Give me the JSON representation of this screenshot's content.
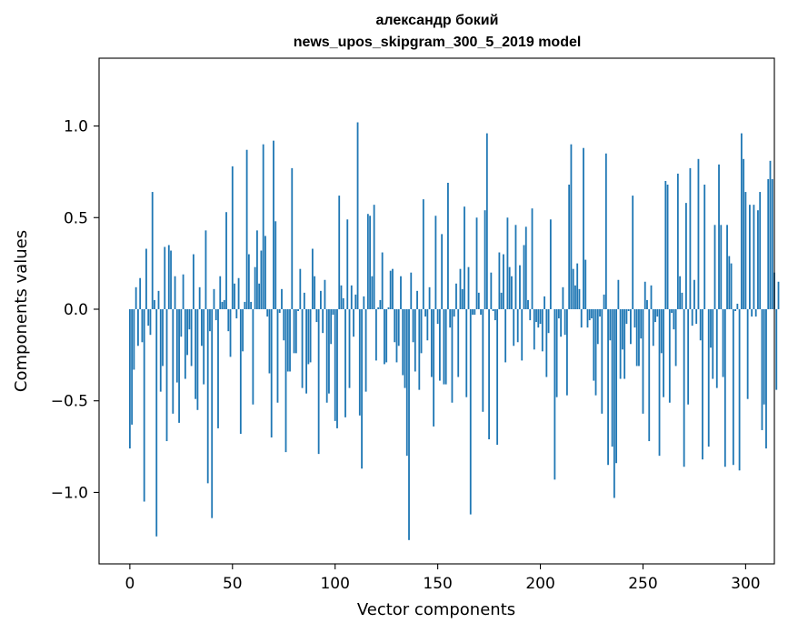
{
  "chart_data": {
    "type": "bar",
    "title_line1": "александр бокий",
    "title_line2": "news_upos_skipgram_300_5_2019 model",
    "xlabel": "Vector components",
    "ylabel": "Components values",
    "xlim": [
      -15,
      314
    ],
    "ylim": [
      -1.39,
      1.37
    ],
    "xticks": [
      0,
      50,
      100,
      150,
      200,
      250,
      300
    ],
    "xtick_labels": [
      "0",
      "50",
      "100",
      "150",
      "200",
      "250",
      "300"
    ],
    "yticks": [
      -1.0,
      -0.5,
      0.0,
      0.5,
      1.0
    ],
    "ytick_labels": [
      "−1.0",
      "−0.5",
      "0.0",
      "0.5",
      "1.0"
    ],
    "bar_color": "#1f77b4",
    "values": [
      -0.76,
      -0.63,
      -0.33,
      0.12,
      -0.2,
      0.17,
      -0.18,
      -1.05,
      0.33,
      -0.09,
      -0.14,
      0.64,
      0.05,
      -1.24,
      0.1,
      -0.45,
      -0.31,
      0.34,
      -0.72,
      0.35,
      0.32,
      -0.57,
      0.18,
      -0.4,
      -0.62,
      -0.15,
      0.19,
      -0.38,
      -0.25,
      -0.11,
      -0.31,
      0.3,
      -0.49,
      -0.55,
      0.12,
      -0.2,
      -0.41,
      0.43,
      -0.95,
      -0.12,
      -1.14,
      0.11,
      -0.06,
      -0.65,
      0.18,
      0.04,
      0.05,
      0.53,
      -0.12,
      -0.26,
      0.78,
      0.14,
      -0.05,
      0.17,
      -0.68,
      -0.23,
      0.04,
      0.87,
      0.3,
      0.04,
      -0.52,
      0.23,
      0.43,
      0.14,
      0.32,
      0.9,
      0.4,
      -0.04,
      -0.35,
      -0.7,
      0.92,
      0.48,
      -0.51,
      -0.02,
      0.11,
      -0.17,
      -0.78,
      -0.34,
      -0.34,
      0.77,
      -0.24,
      -0.24,
      -0.01,
      0.22,
      -0.43,
      0.09,
      -0.46,
      -0.3,
      -0.29,
      0.33,
      0.18,
      -0.07,
      -0.79,
      0.1,
      -0.13,
      0.16,
      -0.51,
      -0.46,
      -0.19,
      -0.03,
      -0.61,
      -0.65,
      0.62,
      0.13,
      0.06,
      -0.59,
      0.49,
      -0.43,
      0.13,
      -0.15,
      0.08,
      1.02,
      -0.58,
      -0.87,
      0.07,
      -0.45,
      0.52,
      0.51,
      0.18,
      0.57,
      -0.28,
      0.01,
      0.05,
      0.31,
      -0.3,
      -0.29,
      0.01,
      0.21,
      0.22,
      -0.18,
      -0.29,
      -0.2,
      0.18,
      -0.36,
      -0.43,
      -0.8,
      -1.26,
      0.2,
      -0.18,
      -0.34,
      0.1,
      -0.44,
      -0.24,
      0.6,
      -0.04,
      -0.17,
      0.12,
      -0.37,
      -0.64,
      0.51,
      -0.08,
      -0.39,
      0.41,
      -0.41,
      -0.41,
      0.69,
      -0.1,
      -0.51,
      -0.04,
      0.14,
      -0.37,
      0.22,
      0.11,
      0.56,
      -0.48,
      0.23,
      -1.12,
      -0.03,
      -0.03,
      0.5,
      0.09,
      -0.03,
      -0.56,
      0.54,
      0.96,
      -0.71,
      0.2,
      -0.01,
      -0.06,
      -0.74,
      0.31,
      0.09,
      0.3,
      -0.29,
      0.5,
      0.23,
      0.18,
      -0.2,
      0.46,
      -0.18,
      0.24,
      -0.28,
      0.35,
      0.45,
      0.05,
      -0.06,
      0.55,
      -0.22,
      -0.07,
      -0.1,
      -0.08,
      -0.23,
      0.07,
      -0.37,
      -0.13,
      0.49,
      0.0,
      -0.93,
      -0.48,
      -0.05,
      -0.15,
      0.12,
      -0.14,
      -0.47,
      0.68,
      0.9,
      0.22,
      0.13,
      0.25,
      0.11,
      -0.1,
      0.88,
      0.27,
      -0.1,
      -0.06,
      -0.05,
      -0.39,
      -0.47,
      -0.19,
      -0.04,
      -0.57,
      0.08,
      0.85,
      -0.85,
      -0.17,
      -0.75,
      -1.03,
      -0.84,
      0.16,
      -0.38,
      -0.22,
      -0.38,
      -0.08,
      -0.01,
      -0.19,
      0.62,
      -0.1,
      -0.31,
      -0.31,
      -0.16,
      -0.57,
      0.15,
      0.05,
      -0.72,
      0.13,
      -0.2,
      -0.07,
      -0.04,
      -0.8,
      -0.24,
      -0.48,
      0.7,
      0.68,
      -0.51,
      -0.02,
      -0.11,
      -0.31,
      0.74,
      0.18,
      0.09,
      -0.86,
      0.58,
      -0.52,
      0.77,
      -0.09,
      0.16,
      -0.08,
      0.82,
      -0.17,
      -0.82,
      0.68,
      0.0,
      -0.75,
      -0.21,
      -0.38,
      0.46,
      -0.43,
      0.79,
      0.46,
      -0.37,
      -0.86,
      0.46,
      0.29,
      0.25,
      -0.85,
      -0.01,
      0.03,
      -0.88,
      0.96,
      0.82,
      0.64,
      -0.49,
      0.57,
      -0.04,
      0.57,
      -0.04,
      0.54,
      0.64,
      -0.66,
      -0.52,
      -0.76,
      0.71,
      0.81,
      0.71,
      0.2,
      -0.44,
      0.15
    ]
  }
}
